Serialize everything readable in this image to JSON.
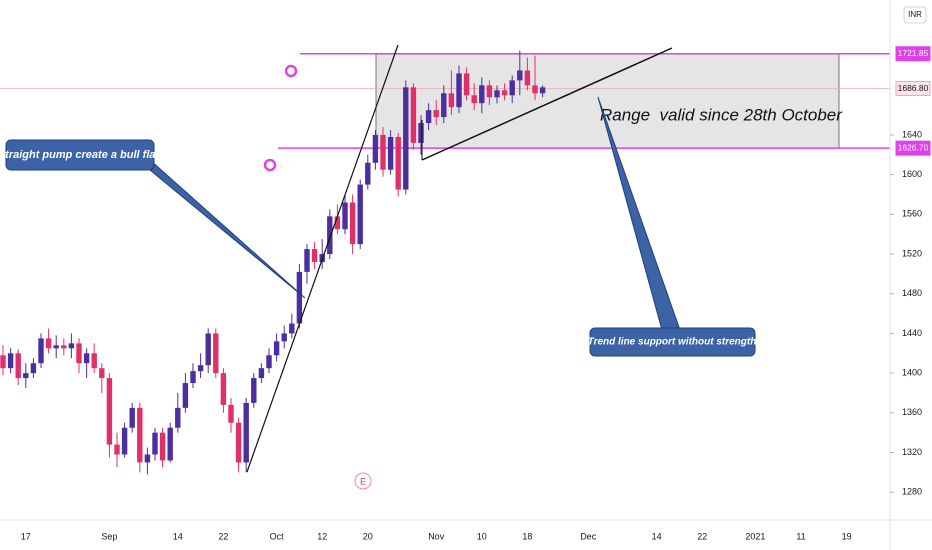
{
  "chart_data": {
    "type": "candlestick",
    "currency": "INR",
    "event_marker": "E",
    "up_color": "#4b2f9e",
    "down_color": "#e0306a",
    "ylim": [
      1252,
      1776
    ],
    "yticks": [
      1280,
      1320,
      1360,
      1400,
      1440,
      1480,
      1520,
      1560,
      1600,
      1640
    ],
    "levels": [
      {
        "value": 1721.85,
        "label": "1721.85",
        "color": "#e040e8"
      },
      {
        "value": 1686.8,
        "label": "1686.80",
        "color": "#f4a6b4"
      },
      {
        "value": 1626.7,
        "label": "1626.70",
        "color": "#e040e8"
      }
    ],
    "annotations": [
      "Straight pump create a bull flag",
      "Trend line support without strength",
      "Range  valid since 28th October"
    ],
    "categories": [
      null,
      null,
      null,
      "17",
      null,
      null,
      null,
      null,
      null,
      null,
      null,
      null,
      null,
      null,
      "Sep",
      null,
      null,
      null,
      null,
      null,
      null,
      null,
      null,
      "14",
      null,
      null,
      null,
      null,
      null,
      "22",
      null,
      null,
      null,
      null,
      null,
      null,
      "Oct",
      null,
      null,
      null,
      null,
      null,
      "12",
      null,
      null,
      null,
      null,
      null,
      "20",
      null,
      null,
      null,
      null,
      null,
      null,
      null,
      null,
      "Nov",
      null,
      null,
      null,
      null,
      null,
      "10",
      null,
      null,
      null,
      null,
      null,
      "18",
      null,
      null,
      null,
      null,
      null,
      null,
      null,
      "Dec",
      null,
      null,
      null,
      null,
      null,
      null,
      null,
      null,
      "14",
      null,
      null,
      null,
      null,
      null,
      "22",
      null,
      null,
      null,
      null,
      null,
      null,
      "2021",
      null,
      null,
      null,
      null,
      null,
      "11",
      null,
      null,
      null,
      null,
      null,
      "19",
      null,
      null,
      null,
      null
    ],
    "open": [
      1418,
      1405,
      1420,
      1395,
      1400,
      1410,
      1435,
      1425,
      1428,
      1425,
      1430,
      1410,
      1420,
      1405,
      1395,
      1328,
      1318,
      1345,
      1365,
      1310,
      1318,
      1340,
      1312,
      1345,
      1365,
      1390,
      1402,
      1408,
      1440,
      1400,
      1368,
      1350,
      1310,
      1370,
      1395,
      1405,
      1418,
      1432,
      1440,
      1450,
      1502,
      1525,
      1512,
      1520,
      1558,
      1545,
      1572,
      1530,
      1590,
      1612,
      1640,
      1605,
      1638,
      1585,
      1688,
      1632,
      1652,
      1665,
      1658,
      1682,
      1668,
      1702,
      1680,
      1672,
      1690,
      1678,
      1685,
      1680,
      1695,
      1705,
      1690,
      1682,
      null,
      null,
      null,
      null,
      null,
      null,
      null,
      null,
      null,
      null,
      null,
      null,
      null,
      null,
      null,
      null,
      null,
      null,
      null,
      null,
      null,
      null,
      null,
      null,
      null,
      null,
      null,
      null,
      null,
      null,
      null,
      null,
      null,
      null,
      null,
      null,
      null,
      null,
      null,
      null,
      null,
      null,
      null,
      null
    ],
    "high": [
      1428,
      1425,
      1424,
      1410,
      1415,
      1440,
      1445,
      1438,
      1435,
      1440,
      1435,
      1425,
      1430,
      1410,
      1400,
      1340,
      1350,
      1370,
      1370,
      1325,
      1345,
      1345,
      1350,
      1380,
      1400,
      1410,
      1420,
      1445,
      1445,
      1405,
      1375,
      1355,
      1375,
      1400,
      1410,
      1425,
      1440,
      1448,
      1460,
      1510,
      1530,
      1532,
      1535,
      1565,
      1570,
      1580,
      1580,
      1595,
      1620,
      1645,
      1648,
      1645,
      1642,
      1695,
      1692,
      1660,
      1672,
      1675,
      1690,
      1705,
      1710,
      1708,
      1692,
      1698,
      1695,
      1690,
      1692,
      1700,
      1725,
      1718,
      1720,
      1690,
      null,
      null,
      null,
      null,
      null,
      null,
      null,
      null,
      null,
      null,
      null,
      null,
      null,
      null,
      null,
      null,
      null,
      null,
      null,
      null,
      null,
      null,
      null,
      null,
      null,
      null,
      null,
      null,
      null,
      null,
      null,
      null,
      null,
      null,
      null,
      null,
      null,
      null,
      null,
      null,
      null,
      null,
      null,
      null
    ],
    "low": [
      1398,
      1400,
      1388,
      1385,
      1395,
      1405,
      1420,
      1415,
      1418,
      1415,
      1400,
      1395,
      1400,
      1380,
      1315,
      1305,
      1315,
      1340,
      1300,
      1298,
      1312,
      1305,
      1310,
      1340,
      1360,
      1385,
      1395,
      1400,
      1395,
      1360,
      1340,
      1300,
      1300,
      1365,
      1390,
      1400,
      1412,
      1425,
      1435,
      1445,
      1490,
      1505,
      1505,
      1515,
      1540,
      1540,
      1520,
      1525,
      1585,
      1605,
      1598,
      1600,
      1578,
      1580,
      1625,
      1620,
      1645,
      1650,
      1652,
      1660,
      1662,
      1675,
      1665,
      1662,
      1670,
      1672,
      1675,
      1672,
      1680,
      1685,
      1675,
      1678,
      null,
      null,
      null,
      null,
      null,
      null,
      null,
      null,
      null,
      null,
      null,
      null,
      null,
      null,
      null,
      null,
      null,
      null,
      null,
      null,
      null,
      null,
      null,
      null,
      null,
      null,
      null,
      null,
      null,
      null,
      null,
      null,
      null,
      null,
      null,
      null,
      null,
      null,
      null,
      null,
      null,
      null,
      null,
      null
    ],
    "close": [
      1405,
      1420,
      1395,
      1400,
      1410,
      1435,
      1425,
      1428,
      1425,
      1430,
      1410,
      1420,
      1405,
      1395,
      1328,
      1318,
      1345,
      1365,
      1310,
      1318,
      1340,
      1312,
      1345,
      1365,
      1390,
      1402,
      1408,
      1440,
      1400,
      1368,
      1350,
      1310,
      1370,
      1395,
      1405,
      1418,
      1432,
      1440,
      1450,
      1502,
      1525,
      1512,
      1520,
      1558,
      1545,
      1572,
      1530,
      1590,
      1612,
      1640,
      1605,
      1638,
      1585,
      1688,
      1632,
      1652,
      1665,
      1658,
      1682,
      1668,
      1702,
      1680,
      1672,
      1690,
      1678,
      1685,
      1680,
      1695,
      1705,
      1690,
      1682,
      1688,
      null,
      null,
      null,
      null,
      null,
      null,
      null,
      null,
      null,
      null,
      null,
      null,
      null,
      null,
      null,
      null,
      null,
      null,
      null,
      null,
      null,
      null,
      null,
      null,
      null,
      null,
      null,
      null,
      null,
      null,
      null,
      null,
      null,
      null,
      null,
      null,
      null,
      null,
      null,
      null,
      null,
      null,
      null,
      null
    ]
  }
}
